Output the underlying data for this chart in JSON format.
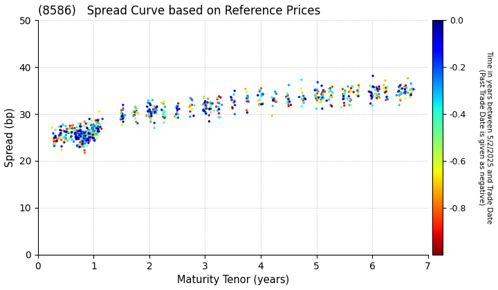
{
  "title": "(8586)   Spread Curve based on Reference Prices",
  "xlabel": "Maturity Tenor (years)",
  "ylabel": "Spread (bp)",
  "colorbar_label_line1": "Time in years between 5/2/2025 and Trade Date",
  "colorbar_label_line2": "(Past Trade Date is given as negative)",
  "xlim": [
    0,
    7
  ],
  "ylim": [
    0,
    50
  ],
  "xticks": [
    0,
    1,
    2,
    3,
    4,
    5,
    6,
    7
  ],
  "yticks": [
    0,
    10,
    20,
    30,
    40,
    50
  ],
  "cmap": "jet_r",
  "vmin": -1.0,
  "vmax": 0.0,
  "colorbar_ticks": [
    0.0,
    -0.2,
    -0.4,
    -0.6,
    -0.8
  ],
  "background_color": "#ffffff",
  "grid_color": "#bbbbbb",
  "seed": 42,
  "point_size": 6
}
